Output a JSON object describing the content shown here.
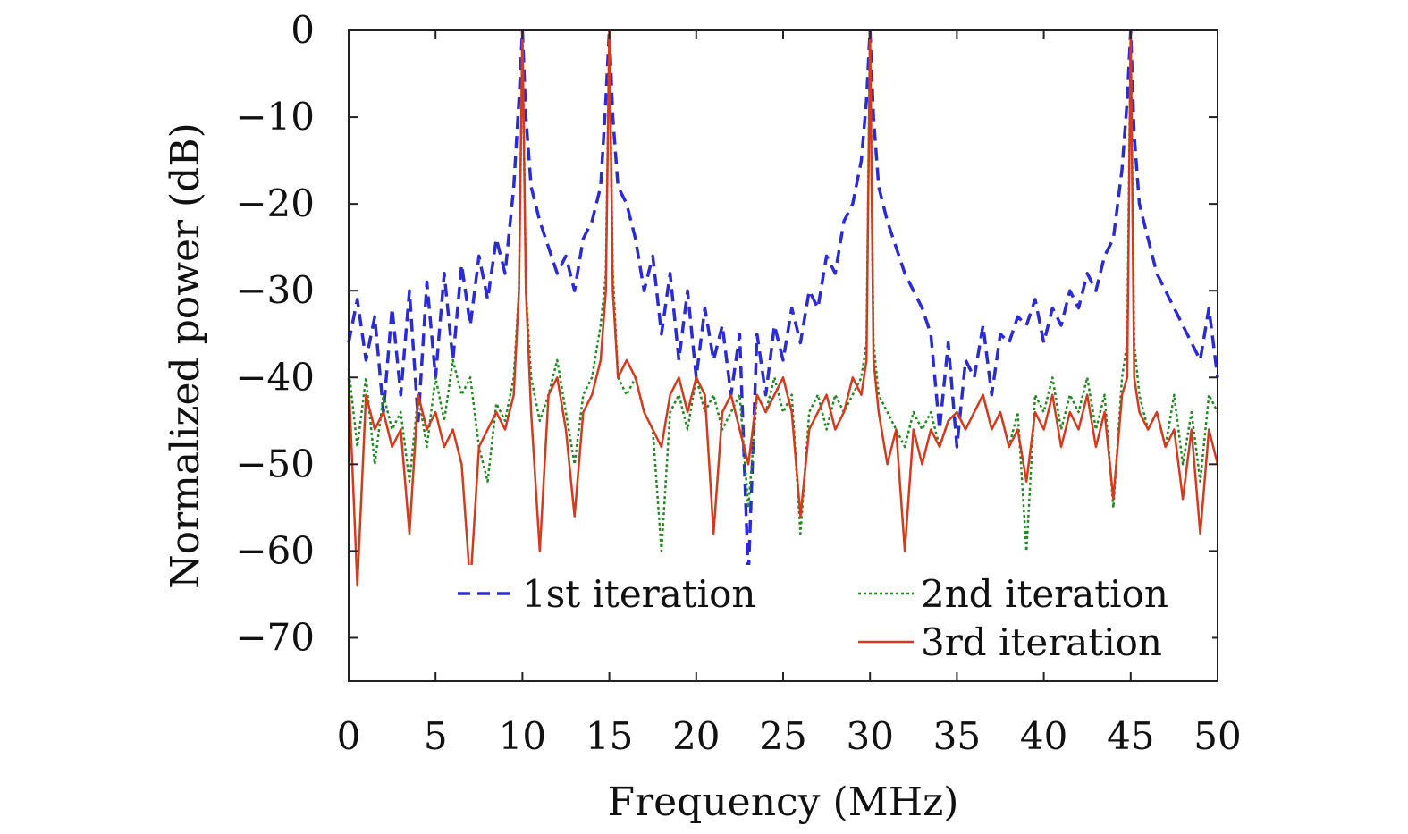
{
  "chart_data": {
    "type": "line",
    "xlabel": "Frequency (MHz)",
    "ylabel": "Normalized power (dB)",
    "xlim": [
      0,
      50
    ],
    "ylim": [
      -75,
      0
    ],
    "xticks": [
      0,
      5,
      10,
      15,
      20,
      25,
      30,
      35,
      40,
      45,
      50
    ],
    "yticks": [
      0,
      -10,
      -20,
      -30,
      -40,
      -50,
      -60,
      -70
    ],
    "xtick_labels": [
      "0",
      "5",
      "10",
      "15",
      "20",
      "25",
      "30",
      "35",
      "40",
      "45",
      "50"
    ],
    "ytick_labels": [
      "0",
      "−10",
      "−20",
      "−30",
      "−40",
      "−50",
      "−60",
      "−70"
    ],
    "grid": false,
    "legend_position": "bottom",
    "series": [
      {
        "name": "1st iteration",
        "color": "#2b2bd6",
        "style": "dashed",
        "x": [
          0,
          0.5,
          1,
          1.5,
          2,
          2.5,
          3,
          3.5,
          4,
          4.5,
          5,
          5.5,
          6,
          6.5,
          7,
          7.5,
          8,
          8.5,
          9,
          9.5,
          9.8,
          10,
          10.2,
          10.5,
          11,
          11.5,
          12,
          12.5,
          13,
          13.5,
          14,
          14.5,
          14.8,
          15,
          15.2,
          15.5,
          16,
          16.5,
          17,
          17.5,
          18,
          18.5,
          19,
          19.5,
          20,
          20.5,
          21,
          21.5,
          22,
          22.5,
          23,
          23.5,
          24,
          24.5,
          25,
          25.5,
          26,
          26.5,
          27,
          27.5,
          28,
          28.5,
          29,
          29.5,
          29.8,
          30,
          30.2,
          30.5,
          31,
          31.5,
          32,
          32.5,
          33,
          33.5,
          34,
          34.5,
          35,
          35.5,
          36,
          36.5,
          37,
          37.5,
          38,
          38.5,
          39,
          39.5,
          40,
          40.5,
          41,
          41.5,
          42,
          42.5,
          43,
          43.5,
          44,
          44.5,
          44.8,
          45,
          45.2,
          45.5,
          46,
          46.5,
          47,
          47.5,
          48,
          48.5,
          49,
          49.5,
          50
        ],
        "y": [
          -36,
          -31,
          -38,
          -33,
          -44,
          -32,
          -42,
          -30,
          -45,
          -29,
          -40,
          -28,
          -38,
          -27,
          -34,
          -26,
          -31,
          -24,
          -28,
          -18,
          -8,
          0,
          -10,
          -18,
          -22,
          -25,
          -28,
          -26,
          -30,
          -24,
          -22,
          -18,
          -8,
          0,
          -10,
          -18,
          -20,
          -24,
          -30,
          -26,
          -35,
          -28,
          -38,
          -30,
          -40,
          -32,
          -38,
          -34,
          -42,
          -35,
          -63,
          -35,
          -42,
          -34,
          -38,
          -32,
          -36,
          -30,
          -32,
          -26,
          -28,
          -22,
          -20,
          -15,
          -8,
          0,
          -10,
          -18,
          -22,
          -25,
          -28,
          -30,
          -32,
          -35,
          -46,
          -36,
          -48,
          -38,
          -40,
          -34,
          -42,
          -35,
          -36,
          -33,
          -34,
          -31,
          -36,
          -32,
          -34,
          -30,
          -32,
          -28,
          -30,
          -26,
          -24,
          -16,
          -8,
          0,
          -12,
          -20,
          -24,
          -28,
          -30,
          -32,
          -34,
          -36,
          -38,
          -32,
          -40
        ]
      },
      {
        "name": "2nd iteration",
        "color": "#1f8a1f",
        "style": "dotted",
        "x": [
          0,
          0.5,
          1,
          1.5,
          2,
          2.5,
          3,
          3.5,
          4,
          4.5,
          5,
          5.5,
          6,
          6.5,
          7,
          7.5,
          8,
          8.5,
          9,
          9.5,
          9.8,
          10,
          10.2,
          10.5,
          11,
          11.5,
          12,
          12.5,
          13,
          13.5,
          14,
          14.5,
          14.8,
          15,
          15.2,
          15.5,
          16,
          16.5,
          17,
          17.5,
          18,
          18.5,
          19,
          19.5,
          20,
          20.5,
          21,
          21.5,
          22,
          22.5,
          23,
          23.5,
          24,
          24.5,
          25,
          25.5,
          26,
          26.5,
          27,
          27.5,
          28,
          28.5,
          29,
          29.5,
          29.8,
          30,
          30.2,
          30.5,
          31,
          31.5,
          32,
          32.5,
          33,
          33.5,
          34,
          34.5,
          35,
          35.5,
          36,
          36.5,
          37,
          37.5,
          38,
          38.5,
          39,
          39.5,
          40,
          40.5,
          41,
          41.5,
          42,
          42.5,
          43,
          43.5,
          44,
          44.5,
          44.8,
          45,
          45.2,
          45.5,
          46,
          46.5,
          47,
          47.5,
          48,
          48.5,
          49,
          49.5,
          50
        ],
        "y": [
          -39,
          -48,
          -40,
          -50,
          -42,
          -46,
          -44,
          -52,
          -42,
          -48,
          -40,
          -45,
          -38,
          -42,
          -40,
          -48,
          -52,
          -43,
          -45,
          -40,
          -30,
          0,
          -30,
          -40,
          -45,
          -42,
          -38,
          -44,
          -50,
          -42,
          -40,
          -34,
          -28,
          0,
          -28,
          -40,
          -42,
          -40,
          -44,
          -46,
          -60,
          -44,
          -42,
          -46,
          -40,
          -44,
          -42,
          -46,
          -44,
          -42,
          -55,
          -42,
          -44,
          -40,
          -44,
          -42,
          -58,
          -44,
          -42,
          -46,
          -42,
          -44,
          -42,
          -40,
          -36,
          0,
          -36,
          -42,
          -44,
          -46,
          -48,
          -44,
          -46,
          -44,
          -48,
          -45,
          -44,
          -46,
          -44,
          -42,
          -46,
          -44,
          -48,
          -44,
          -60,
          -42,
          -44,
          -40,
          -46,
          -42,
          -44,
          -40,
          -46,
          -42,
          -55,
          -40,
          -36,
          0,
          -36,
          -42,
          -46,
          -44,
          -48,
          -42,
          -50,
          -44,
          -52,
          -42,
          -44
        ]
      },
      {
        "name": "3rd iteration",
        "color": "#d63a1e",
        "style": "solid",
        "x": [
          0,
          0.5,
          1,
          1.5,
          2,
          2.5,
          3,
          3.5,
          4,
          4.5,
          5,
          5.5,
          6,
          6.5,
          7,
          7.5,
          8,
          8.5,
          9,
          9.5,
          9.8,
          10,
          10.2,
          10.5,
          11,
          11.5,
          12,
          12.5,
          13,
          13.5,
          14,
          14.5,
          14.8,
          15,
          15.2,
          15.5,
          16,
          16.5,
          17,
          17.5,
          18,
          18.5,
          19,
          19.5,
          20,
          20.5,
          21,
          21.5,
          22,
          22.5,
          23,
          23.5,
          24,
          24.5,
          25,
          25.5,
          26,
          26.5,
          27,
          27.5,
          28,
          28.5,
          29,
          29.5,
          29.8,
          30,
          30.2,
          30.5,
          31,
          31.5,
          32,
          32.5,
          33,
          33.5,
          34,
          34.5,
          35,
          35.5,
          36,
          36.5,
          37,
          37.5,
          38,
          38.5,
          39,
          39.5,
          40,
          40.5,
          41,
          41.5,
          42,
          42.5,
          43,
          43.5,
          44,
          44.5,
          44.8,
          45,
          45.2,
          45.5,
          46,
          46.5,
          47,
          47.5,
          48,
          48.5,
          49,
          49.5,
          50
        ],
        "y": [
          -40,
          -64,
          -42,
          -46,
          -44,
          -48,
          -46,
          -58,
          -42,
          -46,
          -44,
          -48,
          -46,
          -50,
          -64,
          -48,
          -46,
          -44,
          -46,
          -42,
          -30,
          0,
          -30,
          -44,
          -60,
          -42,
          -40,
          -46,
          -56,
          -44,
          -42,
          -38,
          -30,
          0,
          -30,
          -40,
          -38,
          -40,
          -44,
          -46,
          -48,
          -42,
          -40,
          -44,
          -40,
          -42,
          -58,
          -44,
          -42,
          -46,
          -50,
          -42,
          -44,
          -42,
          -40,
          -44,
          -56,
          -46,
          -44,
          -42,
          -46,
          -44,
          -40,
          -42,
          -38,
          0,
          -38,
          -44,
          -50,
          -46,
          -60,
          -46,
          -50,
          -46,
          -48,
          -45,
          -44,
          -46,
          -44,
          -42,
          -46,
          -44,
          -48,
          -46,
          -52,
          -44,
          -46,
          -42,
          -48,
          -44,
          -46,
          -42,
          -48,
          -44,
          -54,
          -42,
          -40,
          0,
          -40,
          -44,
          -46,
          -44,
          -48,
          -46,
          -54,
          -46,
          -58,
          -46,
          -50
        ]
      }
    ]
  }
}
